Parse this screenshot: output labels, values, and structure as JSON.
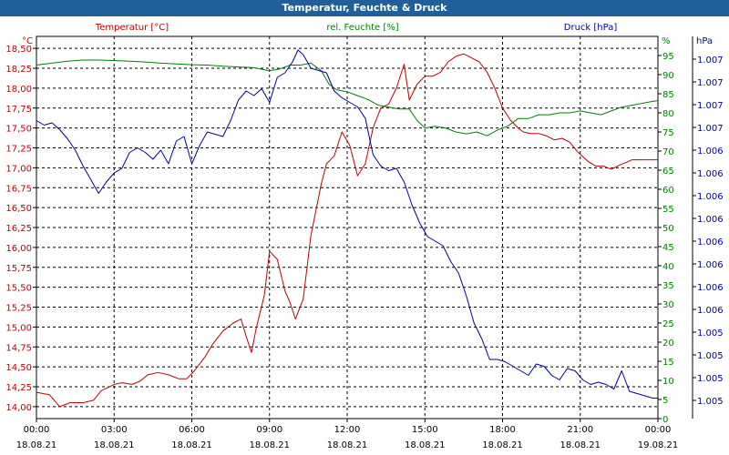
{
  "window": {
    "title": "Temperatur, Feuchte & Druck"
  },
  "colors": {
    "temperature": "#c00000",
    "humidity": "#008000",
    "pressure": "#0000a0",
    "titlebar": "#1f5f9c"
  },
  "chart_data": {
    "type": "line",
    "title": "Temperatur, Feuchte & Druck",
    "grid": true,
    "x_ticks": [
      {
        "time": "00:00",
        "date": "18.08.21"
      },
      {
        "time": "03:00",
        "date": "18.08.21"
      },
      {
        "time": "06:00",
        "date": "18.08.21"
      },
      {
        "time": "09:00",
        "date": "18.08.21"
      },
      {
        "time": "12:00",
        "date": "18.08.21"
      },
      {
        "time": "15:00",
        "date": "18.08.21"
      },
      {
        "time": "18:00",
        "date": "18.08.21"
      },
      {
        "time": "21:00",
        "date": "18.08.21"
      },
      {
        "time": "00:00",
        "date": "19.08.21"
      }
    ],
    "x_range_hours": [
      0,
      24
    ],
    "axes": {
      "temperature": {
        "label": "Temperatur [°C]",
        "unit": "°C",
        "range": [
          13.85,
          18.65
        ],
        "ticks": [
          {
            "v": 14.0,
            "label": "14,00"
          },
          {
            "v": 14.25,
            "label": "14,25"
          },
          {
            "v": 14.5,
            "label": "14,50"
          },
          {
            "v": 14.75,
            "label": "14,75"
          },
          {
            "v": 15.0,
            "label": "15,00"
          },
          {
            "v": 15.25,
            "label": "15,25"
          },
          {
            "v": 15.5,
            "label": "15,50"
          },
          {
            "v": 15.75,
            "label": "15,75"
          },
          {
            "v": 16.0,
            "label": "16,00"
          },
          {
            "v": 16.25,
            "label": "16,25"
          },
          {
            "v": 16.5,
            "label": "16,50"
          },
          {
            "v": 16.75,
            "label": "16,75"
          },
          {
            "v": 17.0,
            "label": "17,00"
          },
          {
            "v": 17.25,
            "label": "17,25"
          },
          {
            "v": 17.5,
            "label": "17,50"
          },
          {
            "v": 17.75,
            "label": "17,75"
          },
          {
            "v": 18.0,
            "label": "18,00"
          },
          {
            "v": 18.25,
            "label": "18,25"
          },
          {
            "v": 18.5,
            "label": "18,50"
          }
        ]
      },
      "humidity": {
        "label": "rel. Feuchte [%]",
        "unit": "%",
        "range": [
          0,
          100
        ],
        "ticks": [
          {
            "v": 0,
            "label": "0"
          },
          {
            "v": 5,
            "label": "5"
          },
          {
            "v": 10,
            "label": "10"
          },
          {
            "v": 15,
            "label": "15"
          },
          {
            "v": 20,
            "label": "20"
          },
          {
            "v": 25,
            "label": "25"
          },
          {
            "v": 30,
            "label": "30"
          },
          {
            "v": 35,
            "label": "35"
          },
          {
            "v": 40,
            "label": "40"
          },
          {
            "v": 45,
            "label": "45"
          },
          {
            "v": 50,
            "label": "50"
          },
          {
            "v": 55,
            "label": "55"
          },
          {
            "v": 60,
            "label": "60"
          },
          {
            "v": 65,
            "label": "65"
          },
          {
            "v": 70,
            "label": "70"
          },
          {
            "v": 75,
            "label": "75"
          },
          {
            "v": 80,
            "label": "80"
          },
          {
            "v": 85,
            "label": "85"
          },
          {
            "v": 90,
            "label": "90"
          },
          {
            "v": 95,
            "label": "95"
          }
        ]
      },
      "pressure": {
        "label": "Druck [hPa]",
        "unit": "hPa",
        "range": [
          4.2,
          21.0
        ],
        "ticks": [
          {
            "v": 5.0,
            "label": "1.005"
          },
          {
            "v": 6.0,
            "label": "1.005"
          },
          {
            "v": 7.0,
            "label": "1.005"
          },
          {
            "v": 8.0,
            "label": "1.005"
          },
          {
            "v": 9.0,
            "label": "1.006"
          },
          {
            "v": 10.0,
            "label": "1.006"
          },
          {
            "v": 11.0,
            "label": "1.006"
          },
          {
            "v": 12.0,
            "label": "1.006"
          },
          {
            "v": 13.0,
            "label": "1.006"
          },
          {
            "v": 14.0,
            "label": "1.006"
          },
          {
            "v": 15.0,
            "label": "1.006"
          },
          {
            "v": 16.0,
            "label": "1.006"
          },
          {
            "v": 17.0,
            "label": "1.007"
          },
          {
            "v": 18.0,
            "label": "1.007"
          },
          {
            "v": 19.0,
            "label": "1.007"
          },
          {
            "v": 20.0,
            "label": "1.007"
          }
        ]
      }
    },
    "series": [
      {
        "name": "Temperatur [°C]",
        "axis": "temperature",
        "x": [
          0,
          0.5,
          0.9,
          1.3,
          1.8,
          2.2,
          2.5,
          3.0,
          3.3,
          3.7,
          4.0,
          4.3,
          4.7,
          5.1,
          5.5,
          5.8,
          6.1,
          6.5,
          6.8,
          7.2,
          7.6,
          7.9,
          8.1,
          8.3,
          8.5,
          8.8,
          9.0,
          9.3,
          9.6,
          9.8,
          10.0,
          10.3,
          10.6,
          11.0,
          11.2,
          11.5,
          11.8,
          12.1,
          12.4,
          12.7,
          13.0,
          13.3,
          13.6,
          13.9,
          14.2,
          14.4,
          14.7,
          15.0,
          15.3,
          15.6,
          15.9,
          16.2,
          16.5,
          16.8,
          17.1,
          17.4,
          17.7,
          18.0,
          18.3,
          18.6,
          18.8,
          19.1,
          19.4,
          19.7,
          20.0,
          20.3,
          20.6,
          20.9,
          21.3,
          21.6,
          21.9,
          22.2,
          22.5,
          22.8,
          23.0,
          23.3,
          23.6,
          23.8,
          24.0
        ],
        "values": [
          14.18,
          14.15,
          14.0,
          14.05,
          14.05,
          14.08,
          14.2,
          14.28,
          14.3,
          14.28,
          14.32,
          14.4,
          14.43,
          14.4,
          14.35,
          14.35,
          14.45,
          14.62,
          14.78,
          14.95,
          15.05,
          15.1,
          14.88,
          14.68,
          15.0,
          15.4,
          15.95,
          15.85,
          15.45,
          15.3,
          15.1,
          15.35,
          16.15,
          16.8,
          17.05,
          17.15,
          17.45,
          17.28,
          16.9,
          17.05,
          17.5,
          17.75,
          17.8,
          18.0,
          18.3,
          17.85,
          18.05,
          18.15,
          18.15,
          18.2,
          18.33,
          18.4,
          18.43,
          18.38,
          18.33,
          18.2,
          18.0,
          17.75,
          17.6,
          17.5,
          17.45,
          17.43,
          17.43,
          17.4,
          17.35,
          17.37,
          17.32,
          17.2,
          17.08,
          17.02,
          17.02,
          16.98,
          17.03,
          17.07,
          17.1,
          17.1,
          17.1,
          17.1,
          17.1
        ]
      },
      {
        "name": "rel. Feuchte [%]",
        "axis": "humidity",
        "x": [
          0,
          0.6,
          1.2,
          1.8,
          2.4,
          3.0,
          3.6,
          4.2,
          4.8,
          5.4,
          6.0,
          6.6,
          7.2,
          7.8,
          8.4,
          9.0,
          9.4,
          9.8,
          10.2,
          10.6,
          11.0,
          11.3,
          11.6,
          12.0,
          12.4,
          12.8,
          13.2,
          13.6,
          14.0,
          14.4,
          14.7,
          15.0,
          15.4,
          15.8,
          16.2,
          16.6,
          17.0,
          17.4,
          17.8,
          18.2,
          18.6,
          19.0,
          19.4,
          19.8,
          20.2,
          20.6,
          21.0,
          21.4,
          21.8,
          22.2,
          22.6,
          23.0,
          23.4,
          23.8,
          24.0
        ],
        "values": [
          92.5,
          93.0,
          93.5,
          93.8,
          93.8,
          93.7,
          93.5,
          93.3,
          93.0,
          92.8,
          92.6,
          92.5,
          92.2,
          92.0,
          91.8,
          91.0,
          91.5,
          92.5,
          92.5,
          93.0,
          91.0,
          87.5,
          86.0,
          85.5,
          84.5,
          83.5,
          82.0,
          81.5,
          81.0,
          81.0,
          78.0,
          76.0,
          76.5,
          76.0,
          75.0,
          74.5,
          75.0,
          74.0,
          75.5,
          76.5,
          78.5,
          78.5,
          79.5,
          79.5,
          80.0,
          80.0,
          80.5,
          80.0,
          79.5,
          80.5,
          81.5,
          82.0,
          82.5,
          83.0,
          83.2
        ]
      },
      {
        "name": "Druck [hPa]",
        "axis": "pressure",
        "x": [
          0,
          0.3,
          0.6,
          0.9,
          1.2,
          1.5,
          1.8,
          2.1,
          2.4,
          2.7,
          3.0,
          3.3,
          3.6,
          3.9,
          4.2,
          4.5,
          4.8,
          5.1,
          5.4,
          5.7,
          6.0,
          6.3,
          6.6,
          6.9,
          7.2,
          7.5,
          7.8,
          8.1,
          8.4,
          8.7,
          9.0,
          9.3,
          9.6,
          9.9,
          10.1,
          10.3,
          10.6,
          10.9,
          11.2,
          11.5,
          11.8,
          12.1,
          12.4,
          12.7,
          13.0,
          13.3,
          13.6,
          13.9,
          14.2,
          14.5,
          14.8,
          15.1,
          15.4,
          15.7,
          16.0,
          16.3,
          16.6,
          16.9,
          17.2,
          17.5,
          17.8,
          18.1,
          18.4,
          18.7,
          19.0,
          19.3,
          19.6,
          19.9,
          20.2,
          20.5,
          20.8,
          21.1,
          21.4,
          21.7,
          22.0,
          22.3,
          22.6,
          22.9,
          23.2,
          23.5,
          23.8,
          24.0
        ],
        "values": [
          17.3,
          17.1,
          17.2,
          16.9,
          16.5,
          16.0,
          15.3,
          14.7,
          14.1,
          14.6,
          15.0,
          15.2,
          15.9,
          16.1,
          15.9,
          15.6,
          16.0,
          15.4,
          16.4,
          16.6,
          15.4,
          16.2,
          16.8,
          16.7,
          16.6,
          17.3,
          18.2,
          18.6,
          18.4,
          18.7,
          18.1,
          19.2,
          19.4,
          19.9,
          20.4,
          20.2,
          19.6,
          19.5,
          19.4,
          18.6,
          18.3,
          18.1,
          17.9,
          17.4,
          15.8,
          15.3,
          15.1,
          15.2,
          14.6,
          13.6,
          12.8,
          12.2,
          12.0,
          11.8,
          11.1,
          10.6,
          9.6,
          8.4,
          7.7,
          6.8,
          6.8,
          6.7,
          6.5,
          6.3,
          6.1,
          6.6,
          6.5,
          6.1,
          5.9,
          6.4,
          6.3,
          5.9,
          5.7,
          5.8,
          5.7,
          5.5,
          6.3,
          5.4,
          5.3,
          5.2,
          5.1,
          5.1
        ]
      }
    ]
  }
}
